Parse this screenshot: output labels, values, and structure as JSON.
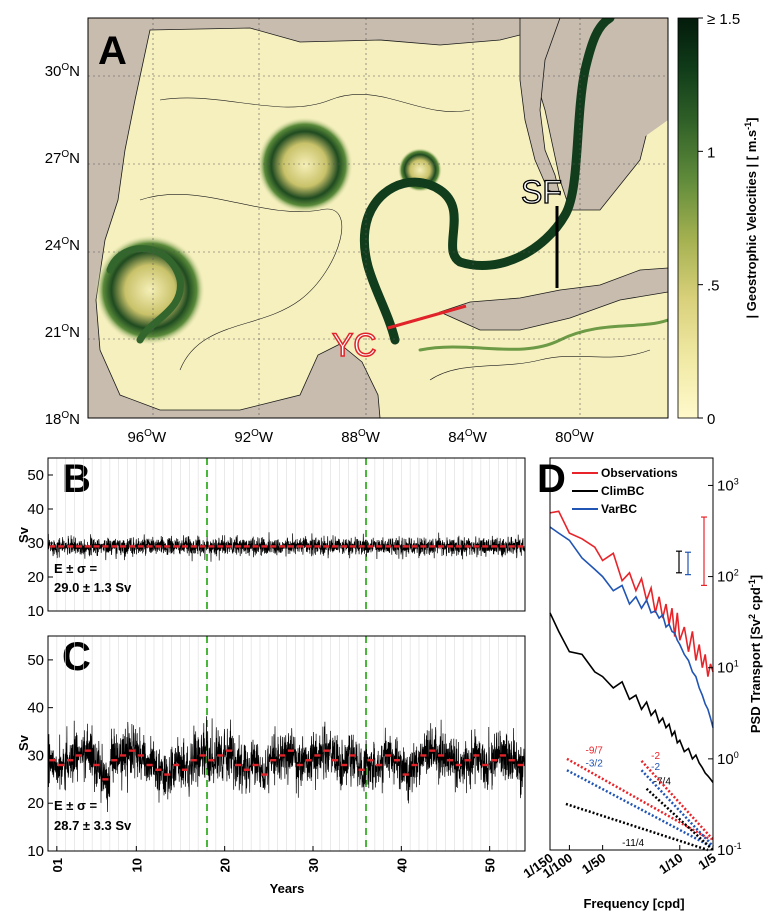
{
  "panel_a": {
    "label": "A",
    "colorbar": {
      "label": "| Geostrophic Velocities | [ m.s",
      "label_sup": "-1",
      "label_end": "]",
      "ticks": [
        "≥ 1.5",
        "1",
        ".5",
        "0"
      ],
      "tick_values": [
        1.5,
        1.0,
        0.5,
        0.0
      ],
      "colors": [
        "#fff9cc",
        "#f0e9a4",
        "#d8d07a",
        "#a3b050",
        "#5e8a3a",
        "#2e5e27",
        "#0f3a18",
        "#031b0b"
      ]
    },
    "lat_ticks": [
      {
        "deg": "30",
        "hem": "N",
        "value": 30
      },
      {
        "deg": "27",
        "hem": "N",
        "value": 27
      },
      {
        "deg": "24",
        "hem": "N",
        "value": 24
      },
      {
        "deg": "21",
        "hem": "N",
        "value": 21
      },
      {
        "deg": "18",
        "hem": "N",
        "value": 18
      }
    ],
    "lon_ticks": [
      {
        "deg": "96",
        "hem": "W",
        "value": -96
      },
      {
        "deg": "92",
        "hem": "W",
        "value": -92
      },
      {
        "deg": "88",
        "hem": "W",
        "value": -88
      },
      {
        "deg": "84",
        "hem": "W",
        "value": -84
      },
      {
        "deg": "80",
        "hem": "W",
        "value": -80
      }
    ],
    "extent": {
      "lon": [
        -98.2,
        -76.5
      ],
      "lat": [
        18,
        31.8
      ]
    },
    "sections": [
      {
        "label": "SF",
        "color": "#000000"
      },
      {
        "label": "YC",
        "color": "#e0242a"
      }
    ],
    "colors": {
      "land": "#c7bcae",
      "section_sf": "#000000",
      "section_yc": "#e0242a"
    }
  },
  "chart_data": [
    {
      "panel": "B",
      "type": "line",
      "ylabel": "Sv",
      "ylim": [
        10,
        55
      ],
      "yticks": [
        10,
        20,
        30,
        40,
        50
      ],
      "xlim": [
        0,
        54
      ],
      "xticks": [
        {
          "value": 1,
          "label": "01"
        },
        {
          "value": 10,
          "label": "10"
        },
        {
          "value": 20,
          "label": "20"
        },
        {
          "value": 30,
          "label": "30"
        },
        {
          "value": 40,
          "label": "40"
        },
        {
          "value": 50,
          "label": "50"
        }
      ],
      "vlines": [
        18,
        36
      ],
      "series": [
        {
          "kind": "daily transport",
          "mean": 29.0,
          "std": 1.3,
          "color": "#000000"
        },
        {
          "kind": "annual mean",
          "color": "#e0242a",
          "values": [
            29,
            29,
            29,
            29,
            29,
            29,
            29,
            29,
            29,
            29,
            29,
            29,
            29,
            29,
            29,
            29,
            29,
            29,
            29,
            29,
            29,
            29,
            29,
            29,
            29,
            29,
            29,
            29,
            29,
            29,
            29,
            29,
            29,
            29,
            29,
            29,
            29,
            29,
            29,
            29,
            29,
            29,
            29,
            29,
            29,
            29,
            29,
            29,
            29,
            29,
            29,
            29,
            29,
            29
          ]
        }
      ],
      "annotation": {
        "line1": "E ± σ =",
        "line2": "29.0 ± 1.3 Sv"
      }
    },
    {
      "panel": "C",
      "type": "line",
      "ylabel": "Sv",
      "xlabel": "Years",
      "ylim": [
        10,
        55
      ],
      "yticks": [
        10,
        20,
        30,
        40,
        50
      ],
      "xlim": [
        0,
        54
      ],
      "xticks": [
        {
          "value": 1,
          "label": "01"
        },
        {
          "value": 10,
          "label": "10"
        },
        {
          "value": 20,
          "label": "20"
        },
        {
          "value": 30,
          "label": "30"
        },
        {
          "value": 40,
          "label": "40"
        },
        {
          "value": 50,
          "label": "50"
        }
      ],
      "vlines": [
        18,
        36
      ],
      "series": [
        {
          "kind": "daily transport",
          "mean": 28.7,
          "std": 3.3,
          "color": "#000000"
        },
        {
          "kind": "annual mean",
          "color": "#e0242a",
          "values": [
            29,
            28,
            29,
            30,
            31,
            28,
            25,
            29,
            30,
            31,
            30,
            28,
            27,
            26,
            28,
            27,
            29,
            30,
            29,
            30,
            31,
            28,
            27,
            28,
            26,
            29,
            30,
            31,
            28,
            29,
            30,
            31,
            29,
            28,
            30,
            27,
            29,
            28,
            30,
            29,
            26,
            28,
            30,
            31,
            30,
            29,
            28,
            29,
            30,
            28,
            29,
            30,
            29,
            28
          ]
        }
      ],
      "annotation": {
        "line1": "E ± σ =",
        "line2": "28.7 ± 3.3 Sv"
      }
    },
    {
      "panel": "D",
      "type": "line",
      "xlabel": "Frequency [cpd]",
      "ylabel": "PSD Transport [Sv",
      "ylabel_sup1": "2",
      "ylabel_mid": " cpd",
      "ylabel_sup2": "-1",
      "ylabel_end": "]",
      "xscale": "log",
      "yscale": "log",
      "xlim": [
        0.00667,
        0.2
      ],
      "ylim": [
        0.1,
        2000
      ],
      "xticks": [
        {
          "value": 0.00667,
          "label": "1/150"
        },
        {
          "value": 0.01,
          "label": "1/100"
        },
        {
          "value": 0.02,
          "label": "1/50"
        },
        {
          "value": 0.1,
          "label": "1/10"
        },
        {
          "value": 0.2,
          "label": "1/5"
        }
      ],
      "yticks": [
        {
          "value": 0.1,
          "base": "10",
          "exp": "-1"
        },
        {
          "value": 1,
          "base": "10",
          "exp": "0"
        },
        {
          "value": 10,
          "base": "10",
          "exp": "1"
        },
        {
          "value": 100,
          "base": "10",
          "exp": "2"
        },
        {
          "value": 1000,
          "base": "10",
          "exp": "3"
        }
      ],
      "legend": {
        "position": "top-left"
      },
      "series": [
        {
          "name": "Observations",
          "color": "#e8242a",
          "x": [
            0.00667,
            0.008,
            0.01,
            0.013,
            0.017,
            0.02,
            0.025,
            0.03,
            0.035,
            0.04,
            0.045,
            0.05,
            0.055,
            0.06,
            0.065,
            0.07,
            0.075,
            0.08,
            0.085,
            0.09,
            0.095,
            0.1,
            0.11,
            0.12,
            0.13,
            0.14,
            0.15,
            0.16,
            0.17,
            0.18,
            0.19,
            0.2
          ],
          "y": [
            500,
            520,
            300,
            260,
            210,
            150,
            180,
            90,
            110,
            70,
            95,
            55,
            75,
            40,
            60,
            35,
            50,
            30,
            45,
            22,
            40,
            20,
            28,
            15,
            25,
            12,
            18,
            10,
            14,
            8,
            11,
            9
          ]
        },
        {
          "name": "ClimBC",
          "color": "#000000",
          "x": [
            0.00667,
            0.008,
            0.01,
            0.013,
            0.017,
            0.02,
            0.025,
            0.03,
            0.035,
            0.04,
            0.045,
            0.05,
            0.055,
            0.06,
            0.065,
            0.07,
            0.075,
            0.08,
            0.085,
            0.09,
            0.095,
            0.1,
            0.11,
            0.12,
            0.13,
            0.14,
            0.15,
            0.16,
            0.17,
            0.18,
            0.19,
            0.2
          ],
          "y": [
            40,
            25,
            15,
            14,
            9,
            8,
            6,
            7,
            4.5,
            5,
            3.5,
            4.2,
            3,
            3.4,
            2.5,
            2.8,
            2.2,
            2.4,
            1.8,
            2.0,
            1.5,
            1.6,
            1.2,
            1.3,
            1.0,
            1.1,
            0.9,
            0.8,
            0.7,
            0.65,
            0.6,
            0.55
          ]
        },
        {
          "name": "VarBC",
          "color": "#2155b4",
          "x": [
            0.00667,
            0.008,
            0.01,
            0.013,
            0.017,
            0.02,
            0.025,
            0.03,
            0.035,
            0.04,
            0.045,
            0.05,
            0.055,
            0.06,
            0.065,
            0.07,
            0.075,
            0.08,
            0.085,
            0.09,
            0.095,
            0.1,
            0.11,
            0.12,
            0.13,
            0.14,
            0.15,
            0.16,
            0.17,
            0.18,
            0.19,
            0.2
          ],
          "y": [
            350,
            300,
            250,
            160,
            120,
            100,
            70,
            80,
            50,
            60,
            45,
            55,
            40,
            42,
            35,
            38,
            28,
            30,
            25,
            24,
            20,
            18,
            14,
            12,
            9,
            8,
            6,
            5,
            4,
            3.5,
            2.8,
            2.2
          ]
        }
      ],
      "error_bars": [
        {
          "series": "ClimBC",
          "color": "#000000",
          "lo": 110,
          "hi": 190
        },
        {
          "series": "VarBC",
          "color": "#2155b4",
          "lo": 105,
          "hi": 185
        },
        {
          "series": "Observations",
          "color": "#e8242a",
          "lo": 80,
          "hi": 450
        }
      ],
      "slopes": [
        {
          "label": "-9/7",
          "color": "#e8242a"
        },
        {
          "label": "-3/2",
          "color": "#2155b4"
        },
        {
          "label": "-11/4",
          "color": "#000000"
        },
        {
          "label": "-2",
          "color": "#e8242a"
        },
        {
          "label": "-2",
          "color": "#2155b4"
        },
        {
          "label": "-7/4",
          "color": "#000000"
        }
      ]
    }
  ]
}
